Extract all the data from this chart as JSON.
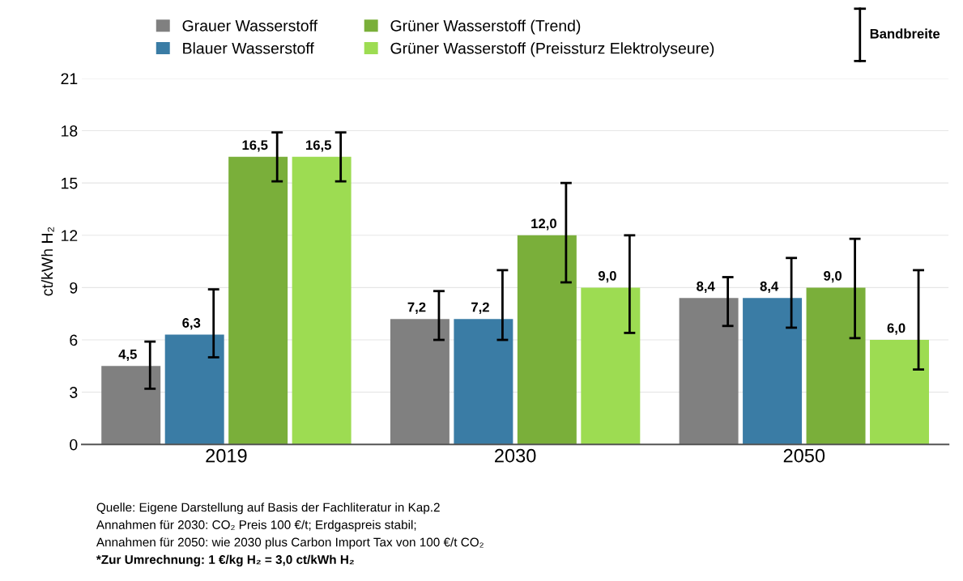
{
  "chart_data": {
    "type": "bar",
    "ylabel": "ct/kWh H₂",
    "categories": [
      "2019",
      "2030",
      "2050"
    ],
    "series": [
      {
        "name": "Grauer Wasserstoff",
        "color": "#808080",
        "values": [
          4.5,
          7.2,
          8.4
        ],
        "value_labels": [
          "4,5",
          "7,2",
          "8,4"
        ],
        "errors": [
          [
            3.2,
            5.9
          ],
          [
            6.0,
            8.8
          ],
          [
            6.8,
            9.6
          ]
        ]
      },
      {
        "name": "Blauer Wasserstoff",
        "color": "#3a7ca5",
        "values": [
          6.3,
          7.2,
          8.4
        ],
        "value_labels": [
          "6,3",
          "7,2",
          "8,4"
        ],
        "errors": [
          [
            5.0,
            8.9
          ],
          [
            6.0,
            10.0
          ],
          [
            6.7,
            10.7
          ]
        ]
      },
      {
        "name": "Grüner Wasserstoff (Trend)",
        "color": "#7aaf3a",
        "values": [
          16.5,
          12.0,
          9.0
        ],
        "value_labels": [
          "16,5",
          "12,0",
          "9,0"
        ],
        "errors": [
          [
            15.1,
            17.9
          ],
          [
            9.3,
            15.0
          ],
          [
            6.1,
            11.8
          ]
        ]
      },
      {
        "name": "Grüner Wasserstoff (Preissturz Elektrolyseure)",
        "color": "#9ddc52",
        "values": [
          16.5,
          9.0,
          6.0
        ],
        "value_labels": [
          "16,5",
          "9,0",
          "6,0"
        ],
        "errors": [
          [
            15.1,
            17.9
          ],
          [
            6.4,
            12.0
          ],
          [
            4.3,
            10.0
          ]
        ]
      }
    ],
    "ylim": [
      0,
      21
    ],
    "yticks": [
      0,
      3,
      6,
      9,
      12,
      15,
      18,
      21
    ],
    "grid": "y",
    "legend": "top",
    "annotations": [
      "Bandbreite",
      "Quelle: Eigene Darstellung auf Basis der Fachliteratur in Kap.2",
      "Annahmen für 2030: CO₂ Preis 100 €/t; Erdgaspreis stabil;",
      "Annahmen für 2050: wie 2030 plus Carbon Import Tax von 100 €/t CO₂",
      "*Zur Umrechnung: 1 €/kg H₂ = 3,0 ct/kWh H₂"
    ]
  }
}
